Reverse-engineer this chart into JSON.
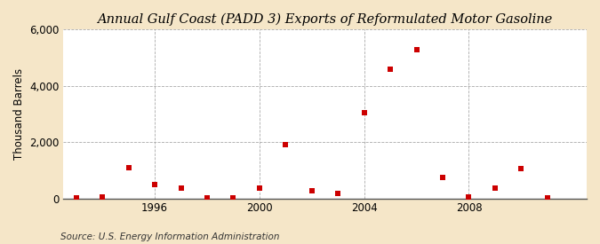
{
  "title": "Annual Gulf Coast (PADD 3) Exports of Reformulated Motor Gasoline",
  "ylabel": "Thousand Barrels",
  "source": "Source: U.S. Energy Information Administration",
  "background_color": "#f5e6c8",
  "plot_background_color": "#ffffff",
  "marker_color": "#cc0000",
  "years": [
    1993,
    1994,
    1995,
    1996,
    1997,
    1998,
    1999,
    2000,
    2001,
    2002,
    2003,
    2004,
    2005,
    2006,
    2007,
    2008,
    2009,
    2010,
    2011
  ],
  "values": [
    5,
    50,
    1100,
    500,
    350,
    20,
    20,
    350,
    1900,
    280,
    180,
    3050,
    4600,
    5300,
    750,
    50,
    350,
    1050,
    5
  ],
  "ylim": [
    0,
    6000
  ],
  "yticks": [
    0,
    2000,
    4000,
    6000
  ],
  "xlim": [
    1992.5,
    2012.5
  ],
  "xtick_years": [
    1996,
    2000,
    2004,
    2008
  ],
  "vgrid_years": [
    1996,
    2000,
    2004,
    2008
  ],
  "grid_color": "#aaaaaa",
  "grid_linestyle": "--",
  "grid_linewidth": 0.6,
  "title_fontsize": 10.5,
  "axis_label_fontsize": 8.5,
  "tick_fontsize": 8.5,
  "source_fontsize": 7.5,
  "marker_size": 15
}
